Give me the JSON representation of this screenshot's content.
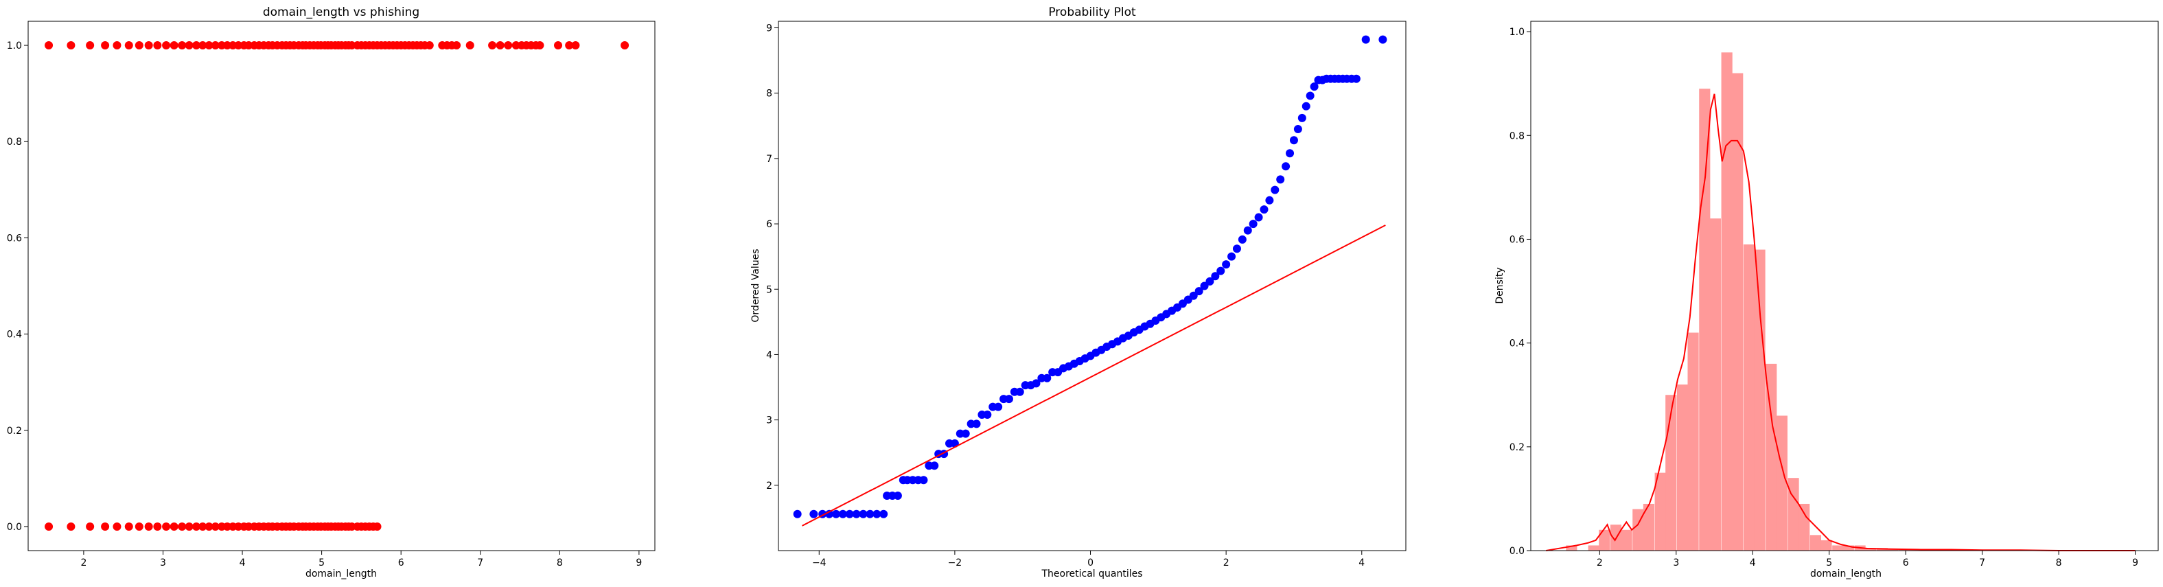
{
  "chart_data": [
    {
      "type": "scatter",
      "title": "domain_length vs phishing",
      "xlabel": "domain_length",
      "ylabel": "",
      "xlim": [
        1.3,
        9.2
      ],
      "ylim": [
        -0.05,
        1.05
      ],
      "xticks": [
        2,
        3,
        4,
        5,
        6,
        7,
        8,
        9
      ],
      "yticks": [
        0.0,
        0.2,
        0.4,
        0.6,
        0.8,
        1.0
      ],
      "xtick_labels": [
        "2",
        "3",
        "4",
        "5",
        "6",
        "7",
        "8",
        "9"
      ],
      "ytick_labels": [
        "0.0",
        "0.2",
        "0.4",
        "0.6",
        "0.8",
        "1.0"
      ],
      "marker_color": "#ff0000",
      "grid": false,
      "series": [
        {
          "x": [
            1.56,
            1.84,
            2.08,
            2.27,
            2.42,
            2.57,
            2.7,
            2.82,
            2.93,
            3.04,
            3.14,
            3.24,
            3.33,
            3.42,
            3.5,
            3.58,
            3.66,
            3.74,
            3.81,
            3.88,
            3.95,
            4.02,
            4.08,
            4.15,
            4.21,
            4.27,
            4.33,
            4.38,
            4.44,
            4.5,
            4.55,
            4.6,
            4.65,
            4.71,
            4.76,
            4.8,
            4.85,
            4.9,
            4.95,
            4.99,
            5.04,
            5.08,
            5.12,
            5.17,
            5.21,
            5.25,
            5.3,
            5.34,
            5.38,
            5.45,
            5.5,
            5.55,
            5.6,
            5.65,
            5.7
          ],
          "y": [
            0,
            0,
            0,
            0,
            0,
            0,
            0,
            0,
            0,
            0,
            0,
            0,
            0,
            0,
            0,
            0,
            0,
            0,
            0,
            0,
            0,
            0,
            0,
            0,
            0,
            0,
            0,
            0,
            0,
            0,
            0,
            0,
            0,
            0,
            0,
            0,
            0,
            0,
            0,
            0,
            0,
            0,
            0,
            0,
            0,
            0,
            0,
            0,
            0,
            0,
            0,
            0,
            0,
            0,
            0
          ]
        },
        {
          "x": [
            1.56,
            1.84,
            2.08,
            2.27,
            2.42,
            2.57,
            2.7,
            2.82,
            2.93,
            3.04,
            3.14,
            3.24,
            3.33,
            3.42,
            3.5,
            3.58,
            3.66,
            3.74,
            3.81,
            3.88,
            3.95,
            4.02,
            4.08,
            4.15,
            4.21,
            4.27,
            4.33,
            4.38,
            4.44,
            4.5,
            4.55,
            4.6,
            4.65,
            4.71,
            4.76,
            4.8,
            4.85,
            4.9,
            4.95,
            4.99,
            5.04,
            5.08,
            5.12,
            5.17,
            5.21,
            5.25,
            5.3,
            5.34,
            5.38,
            5.45,
            5.5,
            5.55,
            5.6,
            5.65,
            5.7,
            5.75,
            5.8,
            5.85,
            5.9,
            5.95,
            6.0,
            6.05,
            6.1,
            6.15,
            6.2,
            6.25,
            6.3,
            6.36,
            6.52,
            6.58,
            6.64,
            6.7,
            6.87,
            7.15,
            7.25,
            7.35,
            7.45,
            7.52,
            7.58,
            7.64,
            7.7,
            7.75,
            7.98,
            8.12,
            8.2,
            8.82
          ],
          "y": [
            1,
            1,
            1,
            1,
            1,
            1,
            1,
            1,
            1,
            1,
            1,
            1,
            1,
            1,
            1,
            1,
            1,
            1,
            1,
            1,
            1,
            1,
            1,
            1,
            1,
            1,
            1,
            1,
            1,
            1,
            1,
            1,
            1,
            1,
            1,
            1,
            1,
            1,
            1,
            1,
            1,
            1,
            1,
            1,
            1,
            1,
            1,
            1,
            1,
            1,
            1,
            1,
            1,
            1,
            1,
            1,
            1,
            1,
            1,
            1,
            1,
            1,
            1,
            1,
            1,
            1,
            1,
            1,
            1,
            1,
            1,
            1,
            1,
            1,
            1,
            1,
            1,
            1,
            1,
            1,
            1,
            1,
            1,
            1,
            1,
            1
          ]
        }
      ]
    },
    {
      "type": "scatter",
      "title": "Probability Plot",
      "xlabel": "Theoretical quantiles",
      "ylabel": "Ordered Values",
      "xlim": [
        -4.6,
        4.65
      ],
      "ylim": [
        1.0,
        9.1
      ],
      "xticks": [
        -4,
        -2,
        0,
        2,
        4
      ],
      "yticks": [
        2,
        3,
        4,
        5,
        6,
        7,
        8,
        9
      ],
      "xtick_labels": [
        "−4",
        "−2",
        "0",
        "2",
        "4"
      ],
      "ytick_labels": [
        "2",
        "3",
        "4",
        "5",
        "6",
        "7",
        "8",
        "9"
      ],
      "marker_color": "#0000ff",
      "line_color": "#ff0000",
      "grid": false,
      "fit_line": {
        "x": [
          -4.25,
          4.35
        ],
        "y": [
          1.38,
          5.98
        ]
      },
      "points": {
        "x": [
          -4.32,
          -4.08,
          -3.95,
          -3.85,
          -3.75,
          -3.65,
          -3.55,
          -3.45,
          -3.35,
          -3.25,
          -3.15,
          -3.05,
          -3.0,
          -2.92,
          -2.84,
          -2.76,
          -2.7,
          -2.62,
          -2.54,
          -2.46,
          -2.38,
          -2.3,
          -2.24,
          -2.16,
          -2.08,
          -2.0,
          -1.92,
          -1.84,
          -1.76,
          -1.68,
          -1.6,
          -1.52,
          -1.44,
          -1.36,
          -1.28,
          -1.2,
          -1.12,
          -1.04,
          -0.96,
          -0.88,
          -0.8,
          -0.72,
          -0.64,
          -0.56,
          -0.48,
          -0.4,
          -0.32,
          -0.24,
          -0.16,
          -0.08,
          0.0,
          0.08,
          0.16,
          0.24,
          0.32,
          0.4,
          0.48,
          0.56,
          0.64,
          0.72,
          0.8,
          0.88,
          0.96,
          1.04,
          1.12,
          1.2,
          1.28,
          1.36,
          1.44,
          1.52,
          1.6,
          1.68,
          1.76,
          1.84,
          1.92,
          2.0,
          2.08,
          2.16,
          2.24,
          2.32,
          2.4,
          2.48,
          2.56,
          2.64,
          2.72,
          2.8,
          2.88,
          2.94,
          3.0,
          3.06,
          3.12,
          3.18,
          3.24,
          3.3,
          3.36,
          3.42,
          3.48,
          3.54,
          3.6,
          3.66,
          3.72,
          3.78,
          3.85,
          3.92,
          4.06,
          4.31
        ],
        "y": [
          1.56,
          1.56,
          1.56,
          1.56,
          1.56,
          1.56,
          1.56,
          1.56,
          1.56,
          1.56,
          1.56,
          1.56,
          1.84,
          1.84,
          1.84,
          2.08,
          2.08,
          2.08,
          2.08,
          2.08,
          2.3,
          2.3,
          2.48,
          2.48,
          2.64,
          2.64,
          2.79,
          2.79,
          2.94,
          2.94,
          3.08,
          3.08,
          3.2,
          3.2,
          3.32,
          3.32,
          3.43,
          3.43,
          3.53,
          3.53,
          3.56,
          3.64,
          3.64,
          3.73,
          3.73,
          3.79,
          3.82,
          3.86,
          3.9,
          3.94,
          3.98,
          4.03,
          4.07,
          4.12,
          4.16,
          4.2,
          4.25,
          4.29,
          4.34,
          4.38,
          4.43,
          4.47,
          4.52,
          4.57,
          4.62,
          4.67,
          4.72,
          4.78,
          4.84,
          4.9,
          4.97,
          5.05,
          5.12,
          5.2,
          5.28,
          5.38,
          5.5,
          5.62,
          5.76,
          5.9,
          6.0,
          6.1,
          6.22,
          6.36,
          6.52,
          6.68,
          6.88,
          7.08,
          7.28,
          7.45,
          7.62,
          7.8,
          7.96,
          8.1,
          8.2,
          8.2,
          8.22,
          8.22,
          8.22,
          8.22,
          8.22,
          8.22,
          8.22,
          8.22,
          8.82,
          8.82
        ]
      }
    },
    {
      "type": "bar",
      "subtype": "histogram-with-kde",
      "title": "",
      "xlabel": "domain_length",
      "ylabel": "Density",
      "xlim": [
        1.1,
        9.3
      ],
      "ylim": [
        0.0,
        1.02
      ],
      "xticks": [
        2,
        3,
        4,
        5,
        6,
        7,
        8,
        9
      ],
      "yticks": [
        0.0,
        0.2,
        0.4,
        0.6,
        0.8,
        1.0
      ],
      "xtick_labels": [
        "2",
        "3",
        "4",
        "5",
        "6",
        "7",
        "8",
        "9"
      ],
      "ytick_labels": [
        "0.0",
        "0.2",
        "0.4",
        "0.6",
        "0.8",
        "1.0"
      ],
      "bar_color": "#ff9999",
      "kde_color": "#ff0000",
      "grid": false,
      "bin_width": 0.145,
      "bins": {
        "left": [
          1.56,
          1.7,
          1.85,
          1.99,
          2.14,
          2.28,
          2.43,
          2.57,
          2.72,
          2.86,
          3.01,
          3.15,
          3.3,
          3.44,
          3.59,
          3.73,
          3.88,
          4.02,
          4.17,
          4.31,
          4.46,
          4.6,
          4.75,
          4.89,
          5.04,
          5.18,
          5.33,
          5.47,
          5.62,
          5.76,
          5.91,
          6.05,
          6.2,
          6.34,
          6.49,
          6.63,
          6.78,
          6.92,
          7.07,
          7.21,
          7.36,
          7.5,
          7.65,
          7.79,
          7.94,
          8.08,
          8.23,
          8.37,
          8.52,
          8.66
        ],
        "density": [
          0.01,
          0.0,
          0.01,
          0.04,
          0.05,
          0.04,
          0.08,
          0.09,
          0.15,
          0.3,
          0.32,
          0.42,
          0.89,
          0.64,
          0.96,
          0.92,
          0.59,
          0.58,
          0.36,
          0.26,
          0.14,
          0.09,
          0.03,
          0.02,
          0.01,
          0.01,
          0.01,
          0.005,
          0.005,
          0.003,
          0.003,
          0.002,
          0.002,
          0.001,
          0.001,
          0.001,
          0.001,
          0.001,
          0.001,
          0.001,
          0.001,
          0.0,
          0.0,
          0.0,
          0.0,
          0.0,
          0.0,
          0.0,
          0.0,
          0.001
        ]
      },
      "kde": {
        "x": [
          1.3,
          1.5,
          1.7,
          1.85,
          1.95,
          2.05,
          2.1,
          2.15,
          2.2,
          2.28,
          2.35,
          2.42,
          2.5,
          2.57,
          2.65,
          2.72,
          2.8,
          2.88,
          2.95,
          3.02,
          3.1,
          3.18,
          3.25,
          3.32,
          3.38,
          3.45,
          3.5,
          3.55,
          3.6,
          3.65,
          3.72,
          3.8,
          3.88,
          3.95,
          4.02,
          4.1,
          4.18,
          4.26,
          4.35,
          4.42,
          4.5,
          4.6,
          4.7,
          4.8,
          4.9,
          5.0,
          5.15,
          5.3,
          5.5,
          5.8,
          6.2,
          6.6,
          7.0,
          7.5,
          8.0,
          8.5,
          9.0
        ],
        "y": [
          0.0,
          0.005,
          0.01,
          0.015,
          0.02,
          0.04,
          0.05,
          0.03,
          0.02,
          0.04,
          0.055,
          0.04,
          0.05,
          0.07,
          0.09,
          0.12,
          0.17,
          0.22,
          0.28,
          0.33,
          0.37,
          0.45,
          0.56,
          0.66,
          0.72,
          0.85,
          0.88,
          0.81,
          0.75,
          0.78,
          0.79,
          0.79,
          0.77,
          0.71,
          0.6,
          0.45,
          0.33,
          0.24,
          0.18,
          0.14,
          0.11,
          0.09,
          0.065,
          0.05,
          0.035,
          0.02,
          0.012,
          0.007,
          0.004,
          0.003,
          0.002,
          0.002,
          0.001,
          0.001,
          0.0,
          0.0,
          0.0
        ]
      }
    }
  ]
}
